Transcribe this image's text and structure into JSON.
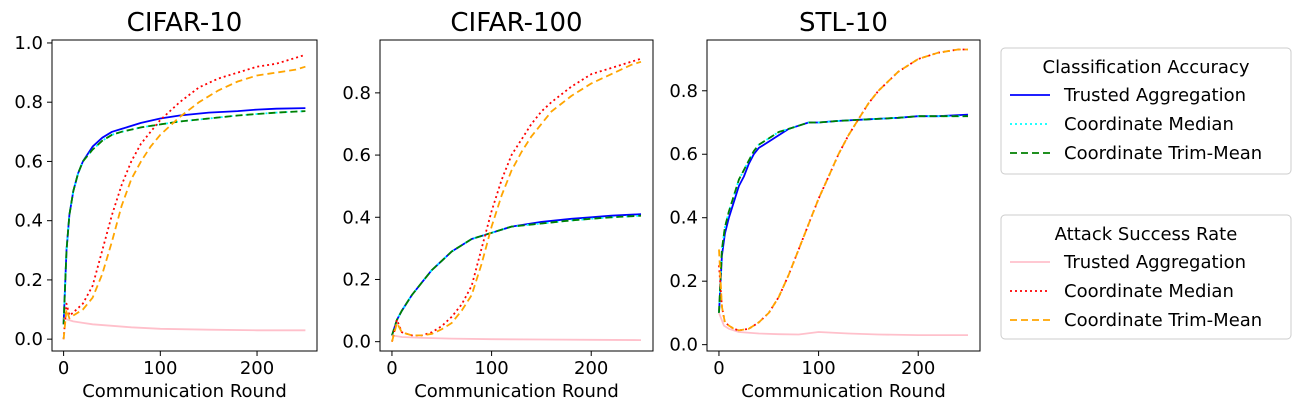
{
  "chart_data": [
    {
      "type": "line",
      "title": "CIFAR-10",
      "xlabel": "Communication Round",
      "ylabel": "",
      "xlim": [
        -12,
        262
      ],
      "ylim": [
        -0.04,
        1.01
      ],
      "xticks": [
        0,
        100,
        200
      ],
      "yticks": [
        0.0,
        0.2,
        0.4,
        0.6,
        0.8,
        1.0
      ],
      "ytick_labels": [
        "0.0",
        "0.2",
        "0.4",
        "0.6",
        "0.8",
        "1.0"
      ],
      "series": [
        {
          "name": "Trusted Aggregation",
          "group": "Classification Accuracy",
          "color": "#0000ff",
          "dash": "solid",
          "x": [
            0,
            3,
            6,
            10,
            15,
            20,
            30,
            40,
            50,
            60,
            80,
            100,
            120,
            150,
            180,
            200,
            220,
            250
          ],
          "y": [
            0.05,
            0.3,
            0.42,
            0.5,
            0.56,
            0.6,
            0.65,
            0.68,
            0.7,
            0.71,
            0.73,
            0.745,
            0.755,
            0.765,
            0.77,
            0.775,
            0.778,
            0.78
          ]
        },
        {
          "name": "Coordinate Median",
          "group": "Classification Accuracy",
          "color": "#00ffff",
          "dash": "dotted",
          "x": [
            0,
            3,
            6,
            10,
            15,
            20,
            30,
            40,
            50,
            60,
            80,
            100,
            120,
            150,
            180,
            200,
            220,
            250
          ],
          "y": [
            0.05,
            0.3,
            0.42,
            0.5,
            0.56,
            0.6,
            0.64,
            0.67,
            0.69,
            0.7,
            0.715,
            0.725,
            0.735,
            0.745,
            0.755,
            0.76,
            0.765,
            0.77
          ]
        },
        {
          "name": "Coordinate Trim-Mean",
          "group": "Classification Accuracy",
          "color": "#008000",
          "dash": "dashed",
          "x": [
            0,
            3,
            6,
            10,
            15,
            20,
            30,
            40,
            50,
            60,
            80,
            100,
            120,
            150,
            180,
            200,
            220,
            250
          ],
          "y": [
            0.05,
            0.3,
            0.42,
            0.5,
            0.56,
            0.6,
            0.64,
            0.67,
            0.69,
            0.7,
            0.715,
            0.725,
            0.735,
            0.745,
            0.755,
            0.76,
            0.765,
            0.77
          ]
        },
        {
          "name": "Trusted Aggregation",
          "group": "Attack Success Rate",
          "color": "#ffc0cb",
          "dash": "solid",
          "x": [
            0,
            5,
            10,
            20,
            30,
            50,
            70,
            100,
            150,
            200,
            250
          ],
          "y": [
            0.07,
            0.065,
            0.06,
            0.055,
            0.05,
            0.045,
            0.04,
            0.035,
            0.032,
            0.03,
            0.03
          ]
        },
        {
          "name": "Coordinate Median",
          "group": "Attack Success Rate",
          "color": "#ff0000",
          "dash": "dotted",
          "x": [
            0,
            3,
            6,
            10,
            20,
            30,
            40,
            50,
            60,
            70,
            80,
            90,
            100,
            120,
            140,
            160,
            180,
            200,
            220,
            240,
            250
          ],
          "y": [
            0.0,
            0.12,
            0.08,
            0.09,
            0.12,
            0.18,
            0.3,
            0.42,
            0.52,
            0.6,
            0.66,
            0.7,
            0.74,
            0.8,
            0.85,
            0.88,
            0.9,
            0.92,
            0.93,
            0.95,
            0.96
          ]
        },
        {
          "name": "Coordinate Trim-Mean",
          "group": "Attack Success Rate",
          "color": "#ffa500",
          "dash": "dashed",
          "x": [
            0,
            3,
            6,
            10,
            20,
            30,
            40,
            50,
            60,
            70,
            80,
            90,
            100,
            120,
            140,
            160,
            180,
            200,
            220,
            240,
            250
          ],
          "y": [
            0.0,
            0.1,
            0.07,
            0.08,
            0.1,
            0.14,
            0.22,
            0.33,
            0.45,
            0.54,
            0.6,
            0.65,
            0.69,
            0.75,
            0.8,
            0.84,
            0.87,
            0.89,
            0.9,
            0.91,
            0.92
          ]
        }
      ]
    },
    {
      "type": "line",
      "title": "CIFAR-100",
      "xlabel": "Communication Round",
      "ylabel": "",
      "xlim": [
        -12,
        262
      ],
      "ylim": [
        -0.03,
        0.97
      ],
      "xticks": [
        0,
        100,
        200
      ],
      "yticks": [
        0.0,
        0.2,
        0.4,
        0.6,
        0.8
      ],
      "ytick_labels": [
        "0.0",
        "0.2",
        "0.4",
        "0.6",
        "0.8"
      ],
      "series": [
        {
          "name": "Trusted Aggregation",
          "group": "Classification Accuracy",
          "color": "#0000ff",
          "dash": "solid",
          "x": [
            0,
            5,
            10,
            20,
            30,
            40,
            50,
            60,
            80,
            100,
            120,
            150,
            180,
            200,
            220,
            250
          ],
          "y": [
            0.02,
            0.07,
            0.1,
            0.15,
            0.19,
            0.23,
            0.26,
            0.29,
            0.33,
            0.35,
            0.37,
            0.385,
            0.395,
            0.4,
            0.405,
            0.41
          ]
        },
        {
          "name": "Coordinate Median",
          "group": "Classification Accuracy",
          "color": "#00ffff",
          "dash": "dotted",
          "x": [
            0,
            5,
            10,
            20,
            30,
            40,
            50,
            60,
            80,
            100,
            120,
            150,
            180,
            200,
            220,
            250
          ],
          "y": [
            0.02,
            0.07,
            0.1,
            0.15,
            0.19,
            0.23,
            0.26,
            0.29,
            0.33,
            0.35,
            0.37,
            0.38,
            0.39,
            0.395,
            0.4,
            0.405
          ]
        },
        {
          "name": "Coordinate Trim-Mean",
          "group": "Classification Accuracy",
          "color": "#008000",
          "dash": "dashed",
          "x": [
            0,
            5,
            10,
            20,
            30,
            40,
            50,
            60,
            80,
            100,
            120,
            150,
            180,
            200,
            220,
            250
          ],
          "y": [
            0.02,
            0.07,
            0.1,
            0.15,
            0.19,
            0.23,
            0.26,
            0.29,
            0.33,
            0.35,
            0.37,
            0.38,
            0.39,
            0.395,
            0.4,
            0.405
          ]
        },
        {
          "name": "Trusted Aggregation",
          "group": "Attack Success Rate",
          "color": "#ffc0cb",
          "dash": "solid",
          "x": [
            0,
            10,
            30,
            60,
            100,
            150,
            200,
            250
          ],
          "y": [
            0.02,
            0.015,
            0.012,
            0.01,
            0.008,
            0.007,
            0.006,
            0.005
          ]
        },
        {
          "name": "Coordinate Median",
          "group": "Attack Success Rate",
          "color": "#ff0000",
          "dash": "dotted",
          "x": [
            0,
            5,
            10,
            20,
            30,
            40,
            50,
            60,
            70,
            80,
            90,
            100,
            110,
            120,
            130,
            140,
            150,
            160,
            180,
            200,
            220,
            240,
            250
          ],
          "y": [
            0.0,
            0.07,
            0.03,
            0.02,
            0.02,
            0.03,
            0.05,
            0.08,
            0.12,
            0.18,
            0.3,
            0.42,
            0.52,
            0.6,
            0.65,
            0.7,
            0.74,
            0.77,
            0.82,
            0.86,
            0.88,
            0.9,
            0.91
          ]
        },
        {
          "name": "Coordinate Trim-Mean",
          "group": "Attack Success Rate",
          "color": "#ffa500",
          "dash": "dashed",
          "x": [
            0,
            5,
            10,
            20,
            30,
            40,
            50,
            60,
            70,
            80,
            90,
            100,
            110,
            120,
            130,
            140,
            150,
            160,
            180,
            200,
            220,
            240,
            250
          ],
          "y": [
            0.0,
            0.06,
            0.03,
            0.02,
            0.02,
            0.025,
            0.04,
            0.06,
            0.1,
            0.15,
            0.25,
            0.37,
            0.47,
            0.55,
            0.61,
            0.66,
            0.7,
            0.74,
            0.79,
            0.83,
            0.86,
            0.89,
            0.9
          ]
        }
      ]
    },
    {
      "type": "line",
      "title": "STL-10",
      "xlabel": "Communication Round",
      "ylabel": "",
      "xlim": [
        -12,
        262
      ],
      "ylim": [
        -0.02,
        0.96
      ],
      "xticks": [
        0,
        100,
        200
      ],
      "yticks": [
        0.0,
        0.2,
        0.4,
        0.6,
        0.8
      ],
      "ytick_labels": [
        "0.0",
        "0.2",
        "0.4",
        "0.6",
        "0.8"
      ],
      "series": [
        {
          "name": "Trusted Aggregation",
          "group": "Classification Accuracy",
          "color": "#0000ff",
          "dash": "solid",
          "x": [
            0,
            3,
            6,
            10,
            15,
            20,
            25,
            30,
            35,
            40,
            50,
            60,
            70,
            80,
            90,
            100,
            120,
            150,
            180,
            200,
            220,
            250
          ],
          "y": [
            0.1,
            0.28,
            0.35,
            0.4,
            0.45,
            0.5,
            0.53,
            0.57,
            0.6,
            0.62,
            0.64,
            0.66,
            0.68,
            0.69,
            0.7,
            0.7,
            0.705,
            0.71,
            0.715,
            0.72,
            0.72,
            0.725
          ]
        },
        {
          "name": "Coordinate Median",
          "group": "Classification Accuracy",
          "color": "#00ffff",
          "dash": "dotted",
          "x": [
            0,
            3,
            6,
            10,
            15,
            20,
            25,
            30,
            35,
            40,
            50,
            60,
            70,
            80,
            90,
            100,
            120,
            150,
            180,
            200,
            220,
            250
          ],
          "y": [
            0.1,
            0.3,
            0.37,
            0.42,
            0.47,
            0.52,
            0.55,
            0.58,
            0.61,
            0.63,
            0.65,
            0.67,
            0.68,
            0.69,
            0.7,
            0.7,
            0.705,
            0.71,
            0.715,
            0.72,
            0.72,
            0.72
          ]
        },
        {
          "name": "Coordinate Trim-Mean",
          "group": "Classification Accuracy",
          "color": "#008000",
          "dash": "dashed",
          "x": [
            0,
            3,
            6,
            10,
            15,
            20,
            25,
            30,
            35,
            40,
            50,
            60,
            70,
            80,
            90,
            100,
            120,
            150,
            180,
            200,
            220,
            250
          ],
          "y": [
            0.1,
            0.3,
            0.37,
            0.42,
            0.47,
            0.52,
            0.55,
            0.58,
            0.61,
            0.63,
            0.65,
            0.67,
            0.68,
            0.69,
            0.7,
            0.7,
            0.705,
            0.71,
            0.715,
            0.72,
            0.72,
            0.72
          ]
        },
        {
          "name": "Trusted Aggregation",
          "group": "Attack Success Rate",
          "color": "#ffc0cb",
          "dash": "solid",
          "x": [
            0,
            5,
            10,
            20,
            40,
            60,
            80,
            100,
            130,
            160,
            200,
            250
          ],
          "y": [
            0.1,
            0.06,
            0.05,
            0.04,
            0.035,
            0.033,
            0.032,
            0.04,
            0.035,
            0.032,
            0.03,
            0.03
          ]
        },
        {
          "name": "Coordinate Median",
          "group": "Attack Success Rate",
          "color": "#ff0000",
          "dash": "dotted",
          "x": [
            0,
            3,
            6,
            10,
            15,
            20,
            30,
            40,
            50,
            60,
            70,
            80,
            90,
            100,
            110,
            120,
            130,
            140,
            150,
            160,
            180,
            200,
            220,
            240,
            250
          ],
          "y": [
            0.25,
            0.12,
            0.07,
            0.06,
            0.05,
            0.045,
            0.05,
            0.07,
            0.1,
            0.15,
            0.22,
            0.3,
            0.38,
            0.46,
            0.53,
            0.6,
            0.66,
            0.71,
            0.76,
            0.8,
            0.86,
            0.9,
            0.92,
            0.93,
            0.93
          ]
        },
        {
          "name": "Coordinate Trim-Mean",
          "group": "Attack Success Rate",
          "color": "#ffa500",
          "dash": "dashed",
          "x": [
            0,
            3,
            6,
            10,
            15,
            20,
            30,
            40,
            50,
            60,
            70,
            80,
            90,
            100,
            110,
            120,
            130,
            140,
            150,
            160,
            180,
            200,
            220,
            240,
            250
          ],
          "y": [
            0.3,
            0.12,
            0.07,
            0.06,
            0.05,
            0.045,
            0.05,
            0.07,
            0.1,
            0.15,
            0.22,
            0.3,
            0.38,
            0.46,
            0.53,
            0.6,
            0.66,
            0.71,
            0.76,
            0.8,
            0.86,
            0.9,
            0.92,
            0.93,
            0.93
          ]
        }
      ]
    }
  ],
  "legends": [
    {
      "title": "Classification Accuracy",
      "entries": [
        {
          "label": "Trusted Aggregation",
          "color": "#0000ff",
          "dash": "solid"
        },
        {
          "label": "Coordinate Median",
          "color": "#00ffff",
          "dash": "dotted"
        },
        {
          "label": "Coordinate Trim-Mean",
          "color": "#008000",
          "dash": "dashed"
        }
      ]
    },
    {
      "title": "Attack Success Rate",
      "entries": [
        {
          "label": "Trusted Aggregation",
          "color": "#ffc0cb",
          "dash": "solid"
        },
        {
          "label": "Coordinate Median",
          "color": "#ff0000",
          "dash": "dotted"
        },
        {
          "label": "Coordinate Trim-Mean",
          "color": "#ffa500",
          "dash": "dashed"
        }
      ]
    }
  ]
}
